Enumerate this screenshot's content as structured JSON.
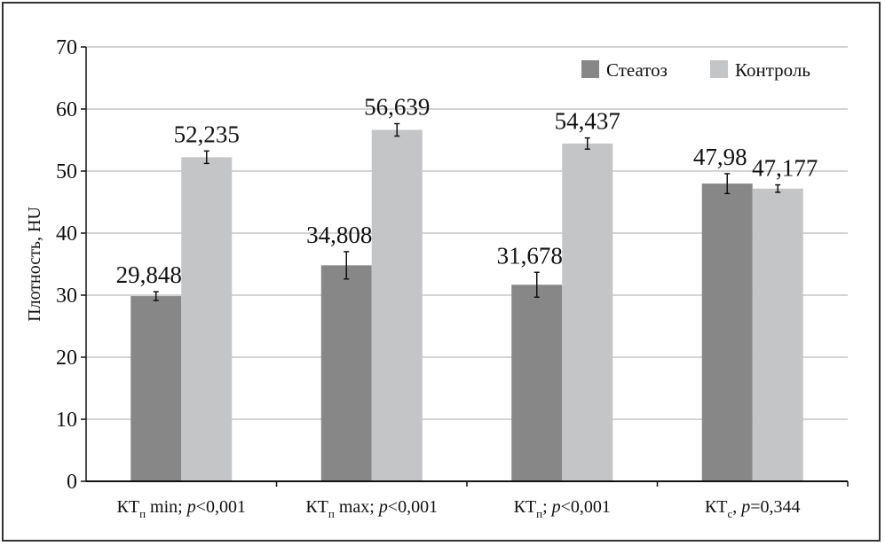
{
  "chart_data": {
    "type": "bar",
    "title": "",
    "xlabel": "",
    "ylabel": "Плотность, HU",
    "ylim": [
      0,
      70
    ],
    "yticks": [
      0,
      10,
      20,
      30,
      40,
      50,
      60,
      70
    ],
    "grid": true,
    "legend_position": "top-right",
    "categories": [
      {
        "main": "КТ",
        "sub": "п",
        "rest": " min; ",
        "p": "p",
        "pval": "<0,001"
      },
      {
        "main": "КТ",
        "sub": "п",
        "rest": " max; ",
        "p": "p",
        "pval": "<0,001"
      },
      {
        "main": "КТ",
        "sub": "п",
        "rest": "; ",
        "p": "p",
        "pval": "<0,001"
      },
      {
        "main": "КТ",
        "sub": "с",
        "rest": ", ",
        "p": "p",
        "pval": "=0,344"
      }
    ],
    "series": [
      {
        "name": "Стеатоз",
        "color": "#878787",
        "values": [
          29.848,
          34.808,
          31.678,
          47.98
        ],
        "labels": [
          "29,848",
          "34,808",
          "31,678",
          "47,98"
        ],
        "errors": [
          0.7,
          2.2,
          2.0,
          1.6
        ]
      },
      {
        "name": "Контроль",
        "color": "#c4c5c7",
        "values": [
          52.235,
          56.639,
          54.437,
          47.177
        ],
        "labels": [
          "52,235",
          "56,639",
          "54,437",
          "47,177"
        ],
        "errors": [
          1.0,
          1.0,
          0.9,
          0.6
        ]
      }
    ]
  }
}
